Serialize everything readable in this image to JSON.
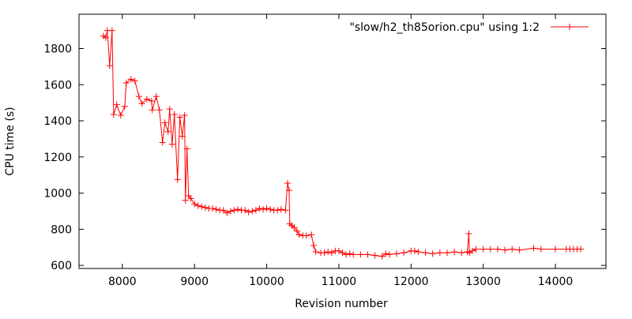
{
  "chart_data": {
    "type": "line",
    "title": "",
    "xlabel": "Revision number",
    "ylabel": "CPU time (s)",
    "xlim": [
      7400,
      14700
    ],
    "ylim": [
      583,
      1990
    ],
    "xticks": [
      8000,
      9000,
      10000,
      11000,
      12000,
      13000,
      14000
    ],
    "yticks": [
      600,
      800,
      1000,
      1200,
      1400,
      1600,
      1800
    ],
    "grid": false,
    "legend_position": "top-right",
    "series": [
      {
        "name": "\"slow/h2_th85orion.cpu\" using 1:2",
        "color": "#ff0000",
        "marker": "plus",
        "x": [
          7738,
          7770,
          7792,
          7825,
          7858,
          7880,
          7923,
          7978,
          8033,
          8055,
          8120,
          8175,
          8230,
          8273,
          8340,
          8405,
          8415,
          8470,
          8514,
          8557,
          8590,
          8634,
          8656,
          8690,
          8721,
          8765,
          8798,
          8830,
          8863,
          8874,
          8896,
          8918,
          8950,
          9000,
          9050,
          9100,
          9150,
          9200,
          9250,
          9300,
          9350,
          9400,
          9450,
          9500,
          9550,
          9600,
          9650,
          9700,
          9750,
          9800,
          9850,
          9900,
          9950,
          10000,
          10050,
          10100,
          10150,
          10200,
          10260,
          10290,
          10310,
          10320,
          10350,
          10380,
          10420,
          10450,
          10500,
          10550,
          10620,
          10650,
          10680,
          10750,
          10800,
          10850,
          10900,
          10950,
          11000,
          11050,
          11100,
          11150,
          11200,
          11300,
          11400,
          11500,
          11600,
          11650,
          11700,
          11800,
          11900,
          12000,
          12050,
          12100,
          12200,
          12300,
          12400,
          12500,
          12600,
          12700,
          12780,
          12800,
          12810,
          12850,
          12900,
          13000,
          13100,
          13200,
          13300,
          13400,
          13500,
          13700,
          13800,
          14000,
          14150,
          14200,
          14250,
          14300,
          14350
        ],
        "y": [
          1870,
          1860,
          1900,
          1705,
          1900,
          1435,
          1490,
          1430,
          1480,
          1610,
          1630,
          1620,
          1535,
          1495,
          1520,
          1510,
          1460,
          1535,
          1460,
          1280,
          1390,
          1340,
          1465,
          1270,
          1435,
          1075,
          1420,
          1315,
          1430,
          960,
          1245,
          985,
          970,
          940,
          930,
          925,
          920,
          915,
          915,
          910,
          905,
          905,
          890,
          900,
          905,
          910,
          905,
          905,
          895,
          900,
          905,
          915,
          910,
          915,
          910,
          905,
          905,
          910,
          905,
          1055,
          1015,
          830,
          820,
          810,
          790,
          770,
          765,
          765,
          770,
          710,
          675,
          670,
          670,
          675,
          670,
          680,
          680,
          670,
          660,
          665,
          660,
          660,
          660,
          655,
          650,
          665,
          660,
          665,
          670,
          680,
          680,
          675,
          670,
          665,
          670,
          670,
          675,
          670,
          675,
          775,
          670,
          680,
          690,
          690,
          690,
          690,
          685,
          690,
          685,
          695,
          690,
          690,
          690,
          690,
          690,
          690,
          690
        ]
      }
    ]
  }
}
